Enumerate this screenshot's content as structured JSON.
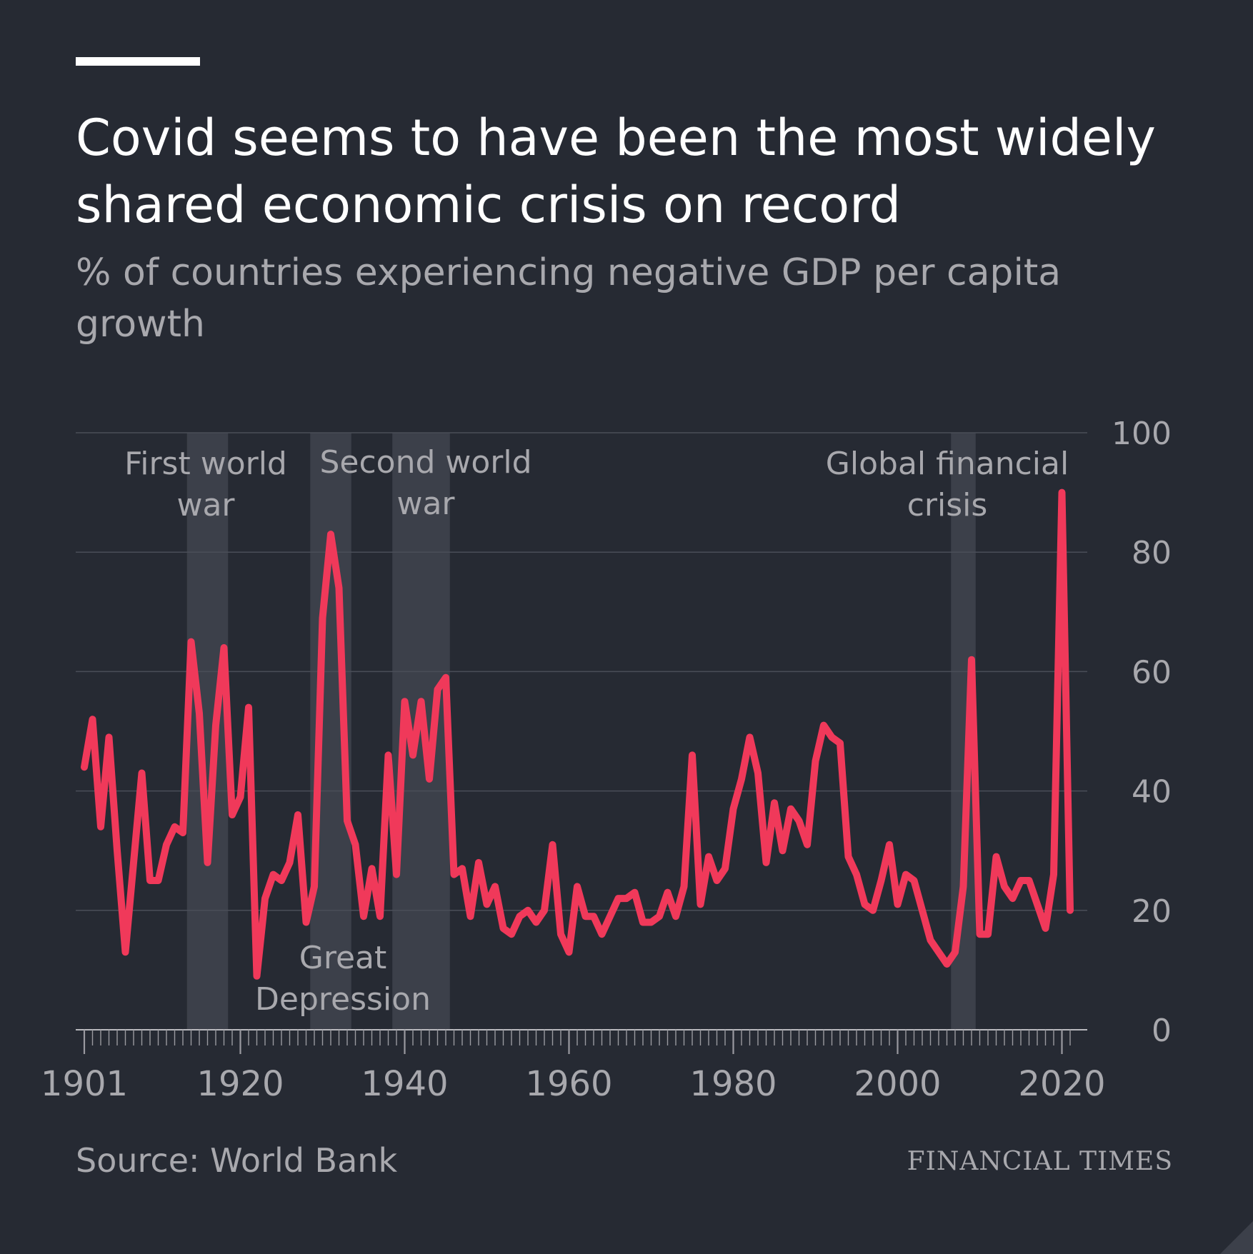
{
  "header": {
    "title": "Covid seems to have been the most widely shared economic crisis on record",
    "subtitle": "% of countries experiencing negative GDP per capita growth"
  },
  "footer": {
    "source": "Source: World Bank",
    "brand": "FINANCIAL TIMES"
  },
  "colors": {
    "background": "#262a33",
    "line": "#f0395a",
    "band": "#3c404a",
    "grid": "#4a4e58",
    "text_muted": "#a8a8ad"
  },
  "chart_data": {
    "type": "line",
    "title": "Covid seems to have been the most widely shared economic crisis on record",
    "subtitle": "% of countries experiencing negative GDP per capita growth",
    "xlabel": "",
    "ylabel": "",
    "xlim": [
      1901,
      2021
    ],
    "ylim": [
      0,
      100
    ],
    "y_ticks": [
      0,
      20,
      40,
      60,
      80,
      100
    ],
    "x_tick_labels": [
      1901,
      1920,
      1940,
      1960,
      1980,
      2000,
      2020
    ],
    "grid": true,
    "y_axis_side": "right",
    "shaded_periods": [
      {
        "label_lines": [
          "First world",
          "war"
        ],
        "start": 1914,
        "end": 1918
      },
      {
        "label_lines": [
          "Great",
          "Depression"
        ],
        "start": 1929,
        "end": 1933
      },
      {
        "label_lines": [
          "Second world",
          "war"
        ],
        "start": 1939,
        "end": 1945
      },
      {
        "label_lines": [
          "Global financial",
          "crisis"
        ],
        "start": 2007,
        "end": 2009
      }
    ],
    "series": [
      {
        "name": "% of countries with negative GDP per capita growth",
        "x": [
          1901,
          1902,
          1903,
          1904,
          1905,
          1906,
          1907,
          1908,
          1909,
          1910,
          1911,
          1912,
          1913,
          1914,
          1915,
          1916,
          1917,
          1918,
          1919,
          1920,
          1921,
          1922,
          1923,
          1924,
          1925,
          1926,
          1927,
          1928,
          1929,
          1930,
          1931,
          1932,
          1933,
          1934,
          1935,
          1936,
          1937,
          1938,
          1939,
          1940,
          1941,
          1942,
          1943,
          1944,
          1945,
          1946,
          1947,
          1948,
          1949,
          1950,
          1951,
          1952,
          1953,
          1954,
          1955,
          1956,
          1957,
          1958,
          1959,
          1960,
          1961,
          1962,
          1963,
          1964,
          1965,
          1966,
          1967,
          1968,
          1969,
          1970,
          1971,
          1972,
          1973,
          1974,
          1975,
          1976,
          1977,
          1978,
          1979,
          1980,
          1981,
          1982,
          1983,
          1984,
          1985,
          1986,
          1987,
          1988,
          1989,
          1990,
          1991,
          1992,
          1993,
          1994,
          1995,
          1996,
          1997,
          1998,
          1999,
          2000,
          2001,
          2002,
          2003,
          2004,
          2005,
          2006,
          2007,
          2008,
          2009,
          2010,
          2011,
          2012,
          2013,
          2014,
          2015,
          2016,
          2017,
          2018,
          2019,
          2020,
          2021
        ],
        "values": [
          44,
          52,
          34,
          49,
          30,
          13,
          28,
          43,
          25,
          25,
          31,
          34,
          33,
          65,
          53,
          28,
          51,
          64,
          36,
          39,
          54,
          9,
          22,
          26,
          25,
          28,
          36,
          18,
          24,
          69,
          83,
          74,
          35,
          31,
          19,
          27,
          19,
          46,
          26,
          55,
          46,
          55,
          42,
          57,
          59,
          26,
          27,
          19,
          28,
          21,
          24,
          17,
          16,
          19,
          20,
          18,
          20,
          31,
          16,
          13,
          24,
          19,
          19,
          16,
          19,
          22,
          22,
          23,
          18,
          18,
          19,
          23,
          19,
          24,
          46,
          21,
          29,
          25,
          27,
          37,
          42,
          49,
          43,
          28,
          38,
          30,
          37,
          35,
          31,
          45,
          51,
          49,
          48,
          29,
          26,
          21,
          20,
          25,
          31,
          21,
          26,
          25,
          20,
          15,
          13,
          11,
          13,
          24,
          62,
          16,
          16,
          29,
          24,
          22,
          25,
          25,
          21,
          17,
          26,
          90,
          20
        ]
      }
    ]
  }
}
